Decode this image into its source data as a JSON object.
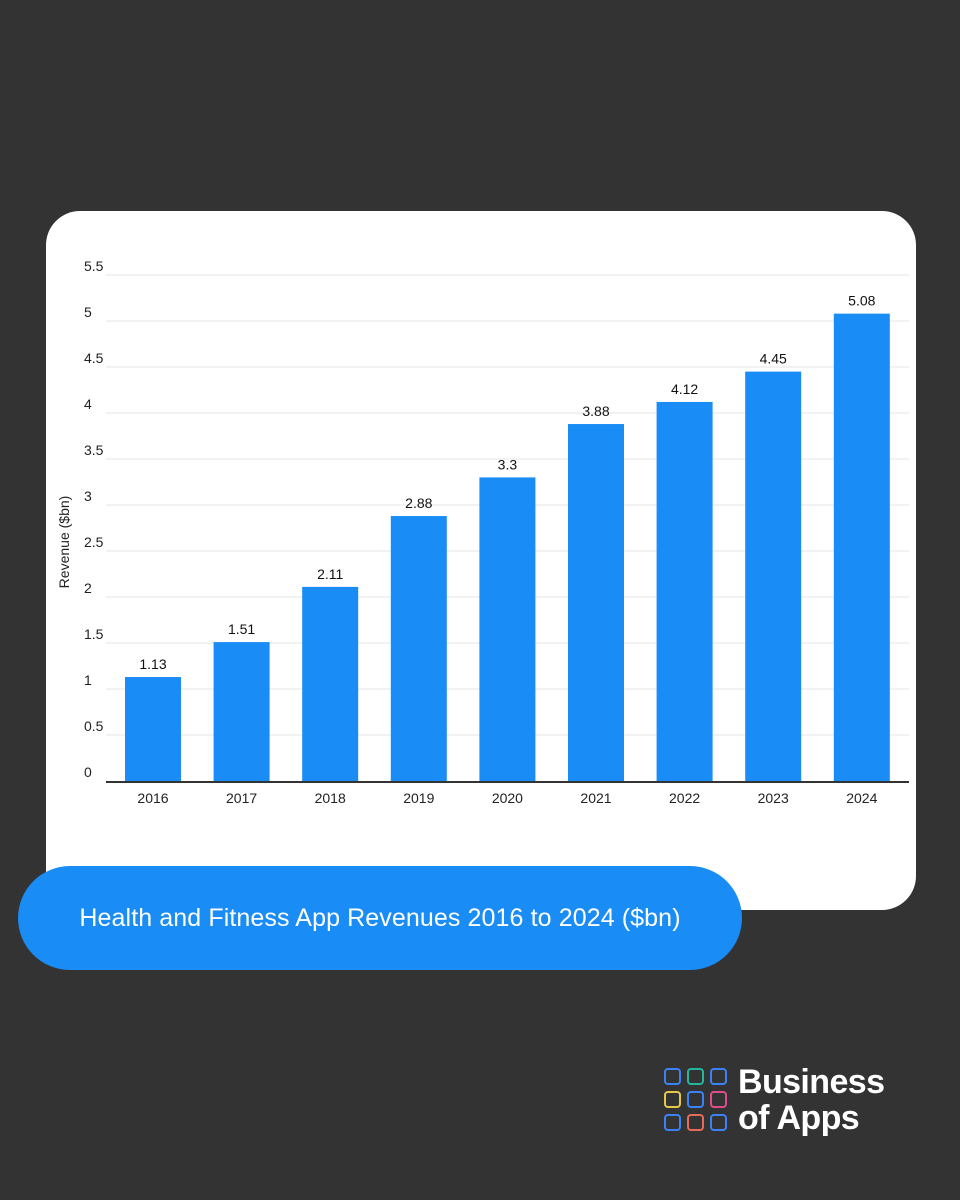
{
  "chart_data": {
    "type": "bar",
    "categories": [
      "2016",
      "2017",
      "2018",
      "2019",
      "2020",
      "2021",
      "2022",
      "2023",
      "2024"
    ],
    "values": [
      1.13,
      1.51,
      2.11,
      2.88,
      3.3,
      3.88,
      4.12,
      4.45,
      5.08
    ],
    "value_labels": [
      "1.13",
      "1.51",
      "2.11",
      "2.88",
      "3.3",
      "3.88",
      "4.12",
      "4.45",
      "5.08"
    ],
    "ylabel": "Revenue ($bn)",
    "xlabel": "",
    "ylim": [
      0,
      5.5
    ],
    "yticks": [
      "0",
      "0.5",
      "1",
      "1.5",
      "2",
      "2.5",
      "3",
      "3.5",
      "4",
      "4.5",
      "5",
      "5.5"
    ],
    "grid": true,
    "bar_color": "#1a8cf5",
    "grid_color": "#e6e6e6",
    "axis_color": "#333333"
  },
  "caption": {
    "text": "Health and Fitness App Revenues 2016 to 2024 ($bn)",
    "color": "#1a8cf5"
  },
  "brand": {
    "line1": "Business",
    "line2": "of Apps",
    "icon": "grid-logo-icon",
    "cell_colors": [
      "#3b82f6",
      "#22b8a0",
      "#3b82f6",
      "#e5c84a",
      "#3b82f6",
      "#e04b8a",
      "#3b82f6",
      "#e86a5a",
      "#3b82f6"
    ]
  }
}
